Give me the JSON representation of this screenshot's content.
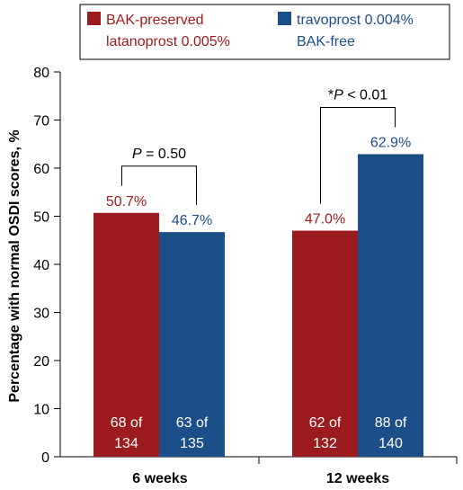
{
  "colors": {
    "series1": "#9b1b1e",
    "series2": "#1c4e8a",
    "axis": "#000000",
    "inbar_text": "#ffffff"
  },
  "legend": {
    "position": "top",
    "items": [
      {
        "line1": "BAK-preserved",
        "line2": "latanoprost 0.005%"
      },
      {
        "line1": "travoprost 0.004%",
        "line2": "BAK-free"
      }
    ]
  },
  "chart_data": {
    "type": "bar",
    "ylabel": "Percentage with normal OSDI scores, %",
    "xlabel": "",
    "ylim": [
      0,
      80
    ],
    "yticks": [
      0,
      10,
      20,
      30,
      40,
      50,
      60,
      70,
      80
    ],
    "yticks_labels": [
      "0",
      "10",
      "20",
      "30",
      "40",
      "50",
      "60",
      "70",
      "80"
    ],
    "categories": [
      "6 weeks",
      "12 weeks"
    ],
    "series": [
      {
        "name": "BAK-preserved latanoprost 0.005%",
        "values": [
          50.7,
          47.0
        ],
        "labels": [
          "50.7%",
          "47.0%"
        ],
        "counts": [
          [
            "68 of",
            "134"
          ],
          [
            "62 of",
            "132"
          ]
        ]
      },
      {
        "name": "travoprost 0.004% BAK-free",
        "values": [
          46.7,
          62.9
        ],
        "labels": [
          "46.7%",
          "62.9%"
        ],
        "counts": [
          [
            "63 of",
            "135"
          ],
          [
            "88 of",
            "140"
          ]
        ]
      }
    ],
    "annotations": [
      {
        "category": 0,
        "p_italic": "P",
        "p_rest": " = 0.50",
        "prefix": ""
      },
      {
        "category": 1,
        "p_italic": "P",
        "p_rest": " < 0.01",
        "prefix": "*"
      }
    ],
    "grid": false
  }
}
